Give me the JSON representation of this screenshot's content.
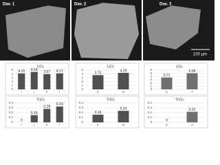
{
  "images": {
    "labels": [
      "Dav. 1",
      "Dav. 2",
      "Dav. 3"
    ],
    "scale_bar": "100 µm"
  },
  "chart_data": [
    {
      "type": "bar",
      "title": "UO₂",
      "categories": [
        "i",
        "j",
        "k",
        "l"
      ],
      "values": [
        4.15,
        4.54,
        3.97,
        4.17
      ],
      "color": "#505050",
      "ylim": [
        0,
        5
      ],
      "yticks": [
        0,
        1,
        2,
        3,
        4,
        5
      ],
      "grid": true
    },
    {
      "type": "bar",
      "title": "ThO₂",
      "categories": [
        "i",
        "j",
        "k",
        "l"
      ],
      "values": [
        0,
        0.15,
        0.28,
        0.33
      ],
      "color": "#505050",
      "ylim": [
        0,
        0.4
      ],
      "yticks": [
        0,
        0.1,
        0.2,
        0.3,
        0.4
      ],
      "grid": true
    },
    {
      "type": "bar",
      "title": "UO₂",
      "categories": [
        "h",
        "m"
      ],
      "values": [
        3.7,
        4.29
      ],
      "value_labels": [
        "3.70",
        "4.29"
      ],
      "color": "#505050",
      "ylim": [
        0,
        5
      ],
      "yticks": [
        0,
        1,
        2,
        3,
        4,
        5
      ],
      "grid": true
    },
    {
      "type": "bar",
      "title": "ThO₂",
      "categories": [
        "h",
        "m"
      ],
      "values": [
        0.16,
        0.24
      ],
      "color": "#505050",
      "ylim": [
        0,
        0.4
      ],
      "yticks": [
        0,
        0.1,
        0.2,
        0.3,
        0.4
      ],
      "grid": true
    },
    {
      "type": "bar",
      "title": "UO₂",
      "categories": [
        "p",
        "o"
      ],
      "values": [
        3.71,
        5.04
      ],
      "color": "#707070",
      "ylim": [
        0,
        6
      ],
      "yticks": [
        0,
        1,
        2,
        3,
        4,
        5,
        6
      ],
      "grid": true
    },
    {
      "type": "bar",
      "title": "ThO₂",
      "categories": [
        "p",
        "o"
      ],
      "values": [
        0,
        0.22
      ],
      "color": "#707070",
      "ylim": [
        0,
        0.4
      ],
      "yticks": [
        0,
        0.1,
        0.2,
        0.3,
        0.4
      ],
      "grid": true
    }
  ]
}
